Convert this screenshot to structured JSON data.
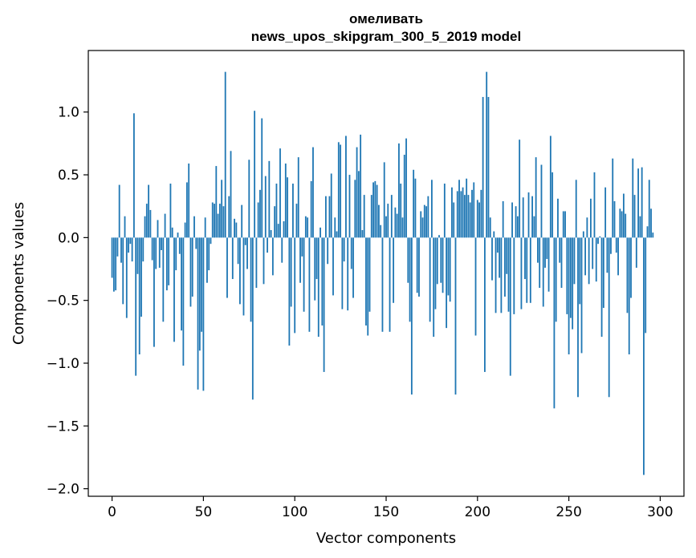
{
  "chart_data": {
    "type": "bar",
    "title": "омеливать",
    "subtitle": "news_upos_skipgram_300_5_2019 model",
    "xlabel": "Vector components",
    "ylabel": "Components values",
    "xlim": [
      -13,
      313
    ],
    "ylim": [
      -2.06,
      1.49
    ],
    "xticks": [
      0,
      50,
      100,
      150,
      200,
      250,
      300
    ],
    "xtick_labels": [
      "0",
      "50",
      "100",
      "150",
      "200",
      "250",
      "300"
    ],
    "yticks": [
      -2.0,
      -1.5,
      -1.0,
      -0.5,
      0.0,
      0.5,
      1.0
    ],
    "ytick_labels": [
      "−2.0",
      "−1.5",
      "−1.0",
      "−0.5",
      "0.0",
      "0.5",
      "1.0"
    ],
    "bar_color": "#1f77b4",
    "x": "0..299",
    "values": [
      -0.32,
      -0.43,
      -0.42,
      -0.15,
      0.42,
      -0.2,
      -0.53,
      0.17,
      -0.64,
      -0.12,
      -0.05,
      -0.19,
      0.99,
      -1.1,
      -0.29,
      -0.93,
      -0.63,
      -0.19,
      0.17,
      0.27,
      0.42,
      0.22,
      -0.18,
      -0.87,
      -0.25,
      0.14,
      -0.24,
      -0.1,
      -0.67,
      0.19,
      -0.42,
      -0.38,
      0.43,
      0.08,
      -0.83,
      -0.26,
      0.04,
      -0.13,
      -0.74,
      -1.02,
      0.12,
      0.44,
      0.59,
      -0.55,
      -0.47,
      0.17,
      -0.09,
      -1.21,
      -0.9,
      -0.75,
      -1.22,
      0.16,
      -0.36,
      -0.26,
      -0.05,
      0.28,
      0.27,
      0.57,
      0.19,
      0.27,
      0.46,
      0.25,
      1.32,
      -0.48,
      0.33,
      0.69,
      -0.33,
      0.15,
      0.12,
      -0.21,
      -0.53,
      0.26,
      -0.62,
      -0.06,
      -0.25,
      0.62,
      -0.67,
      -1.29,
      1.01,
      -0.4,
      0.28,
      0.38,
      0.95,
      -0.37,
      0.49,
      -0.12,
      0.61,
      0.06,
      -0.3,
      0.25,
      0.43,
      0.11,
      0.71,
      -0.2,
      0.13,
      0.59,
      0.48,
      -0.86,
      -0.55,
      0.43,
      -0.76,
      0.27,
      0.64,
      -0.36,
      -0.15,
      -0.59,
      0.17,
      0.16,
      -0.75,
      0.45,
      0.72,
      -0.5,
      -0.33,
      -0.79,
      0.08,
      -0.7,
      -1.07,
      0.33,
      -0.21,
      0.33,
      0.51,
      -0.46,
      0.16,
      0.05,
      0.76,
      0.74,
      -0.57,
      -0.19,
      0.81,
      -0.58,
      0.5,
      -0.25,
      -0.48,
      0.46,
      0.72,
      0.53,
      0.82,
      0.06,
      0.34,
      -0.7,
      -0.78,
      -0.59,
      0.34,
      0.44,
      0.45,
      0.42,
      0.26,
      0.1,
      -0.75,
      0.6,
      0.17,
      0.27,
      -0.75,
      0.34,
      -0.52,
      0.24,
      0.19,
      0.75,
      0.43,
      0.16,
      0.66,
      0.79,
      -0.36,
      -0.67,
      -1.25,
      0.54,
      0.47,
      -0.44,
      -0.47,
      0.21,
      0.16,
      0.26,
      0.25,
      0.33,
      -0.67,
      0.46,
      -0.79,
      -0.57,
      -0.37,
      0.02,
      -0.36,
      -0.44,
      0.43,
      -0.72,
      -0.46,
      -0.51,
      0.4,
      0.28,
      -1.25,
      0.37,
      0.46,
      0.37,
      0.4,
      0.34,
      0.47,
      0.34,
      0.28,
      0.38,
      0.44,
      -0.78,
      0.3,
      0.28,
      0.38,
      1.12,
      -1.07,
      1.32,
      1.12,
      0.16,
      -0.34,
      0.05,
      -0.6,
      -0.12,
      -0.32,
      -0.6,
      0.29,
      -0.47,
      -0.29,
      -0.59,
      -1.1,
      0.28,
      -0.61,
      0.25,
      0.17,
      0.78,
      -0.57,
      0.32,
      -0.33,
      -0.52,
      0.36,
      -0.52,
      0.33,
      0.17,
      0.64,
      -0.2,
      -0.4,
      0.58,
      -0.55,
      -0.24,
      -0.17,
      -0.43,
      0.81,
      0.52,
      -1.36,
      -0.67,
      0.31,
      -0.2,
      -0.4,
      0.21,
      0.21,
      -0.61,
      -0.93,
      -0.64,
      -0.73,
      -0.37,
      0.46,
      -1.27,
      -0.53,
      -0.92,
      0.05,
      -0.3,
      0.16,
      -0.37,
      0.31,
      -0.25,
      0.52,
      -0.35,
      -0.05,
      0.01,
      -0.79,
      -0.56,
      0.4,
      -0.28,
      -1.27,
      -0.13,
      0.63,
      0.29,
      -0.12,
      -0.3,
      0.23,
      0.21,
      0.35,
      0.19,
      -0.6,
      -0.93,
      -0.48,
      0.63,
      0.34,
      -0.24,
      0.55,
      0.17,
      0.56,
      -1.89,
      -0.76,
      0.09,
      0.46,
      0.23,
      0.04
    ]
  }
}
